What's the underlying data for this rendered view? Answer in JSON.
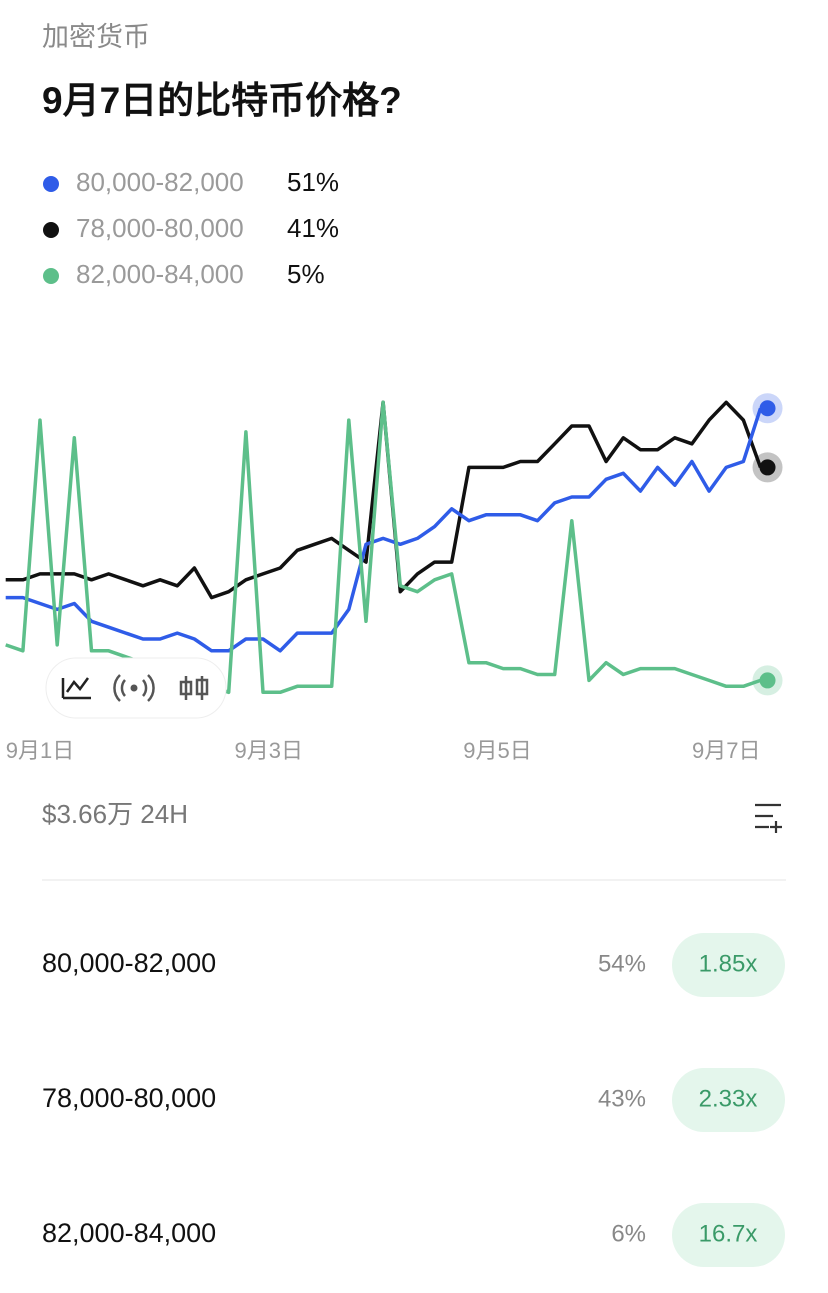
{
  "header": {
    "category": "加密货币",
    "title": "9月7日的比特币价格?"
  },
  "chart_data": {
    "type": "line",
    "x": [
      0.7,
      0.85,
      1.0,
      1.15,
      1.3,
      1.45,
      1.6,
      1.75,
      1.9,
      2.05,
      2.2,
      2.35,
      2.5,
      2.65,
      2.8,
      2.95,
      3.1,
      3.25,
      3.4,
      3.55,
      3.7,
      3.85,
      4.0,
      4.15,
      4.3,
      4.45,
      4.6,
      4.75,
      4.9,
      5.05,
      5.2,
      5.35,
      5.5,
      5.65,
      5.8,
      5.95,
      6.1,
      6.25,
      6.4,
      6.55,
      6.7,
      6.85,
      7.0,
      7.15,
      7.3
    ],
    "xlim": [
      0.65,
      7.89
    ],
    "xticks": [
      {
        "value": 1,
        "label": "9月1日"
      },
      {
        "value": 3,
        "label": "9月3日"
      },
      {
        "value": 5,
        "label": "9月5日"
      },
      {
        "value": 7,
        "label": "9月7日"
      }
    ],
    "ylim": [
      0,
      60
    ],
    "series": [
      {
        "name": "80,000-82,000",
        "color": "#2f5ce8",
        "value_label": "51%",
        "values": [
          19,
          19,
          18,
          17,
          18,
          15,
          14,
          13,
          12,
          12,
          13,
          12,
          10,
          10,
          12,
          12,
          10,
          13,
          13,
          13,
          17,
          28,
          29,
          28,
          29,
          31,
          34,
          32,
          33,
          33,
          33,
          32,
          35,
          36,
          36,
          39,
          40,
          37,
          41,
          38,
          42,
          37,
          41,
          42,
          51
        ]
      },
      {
        "name": "78,000-80,000",
        "color": "#111111",
        "value_label": "41%",
        "values": [
          22,
          22,
          23,
          23,
          23,
          22,
          23,
          22,
          21,
          22,
          21,
          24,
          19,
          20,
          22,
          23,
          24,
          27,
          28,
          29,
          27,
          25,
          52,
          20,
          23,
          25,
          25,
          41,
          41,
          41,
          42,
          42,
          45,
          48,
          48,
          42,
          46,
          44,
          44,
          46,
          45,
          49,
          52,
          49,
          41
        ]
      },
      {
        "name": "82,000-84,000",
        "color": "#5dbf8a",
        "value_label": "5%",
        "values": [
          11,
          10,
          49,
          11,
          46,
          10,
          10,
          9,
          8,
          8,
          5,
          6,
          4,
          3,
          47,
          3,
          3,
          4,
          4,
          4,
          49,
          15,
          52,
          21,
          20,
          22,
          23,
          8,
          8,
          7,
          7,
          6,
          6,
          32,
          5,
          8,
          6,
          7,
          7,
          7,
          6,
          5,
          4,
          4,
          5
        ]
      }
    ]
  },
  "volume": "$3.66万 24H",
  "outcomes": [
    {
      "name": "80,000-82,000",
      "probability": "54%",
      "payout": "1.85x"
    },
    {
      "name": "78,000-80,000",
      "probability": "43%",
      "payout": "2.33x"
    },
    {
      "name": "82,000-84,000",
      "probability": "6%",
      "payout": "16.7x"
    }
  ]
}
